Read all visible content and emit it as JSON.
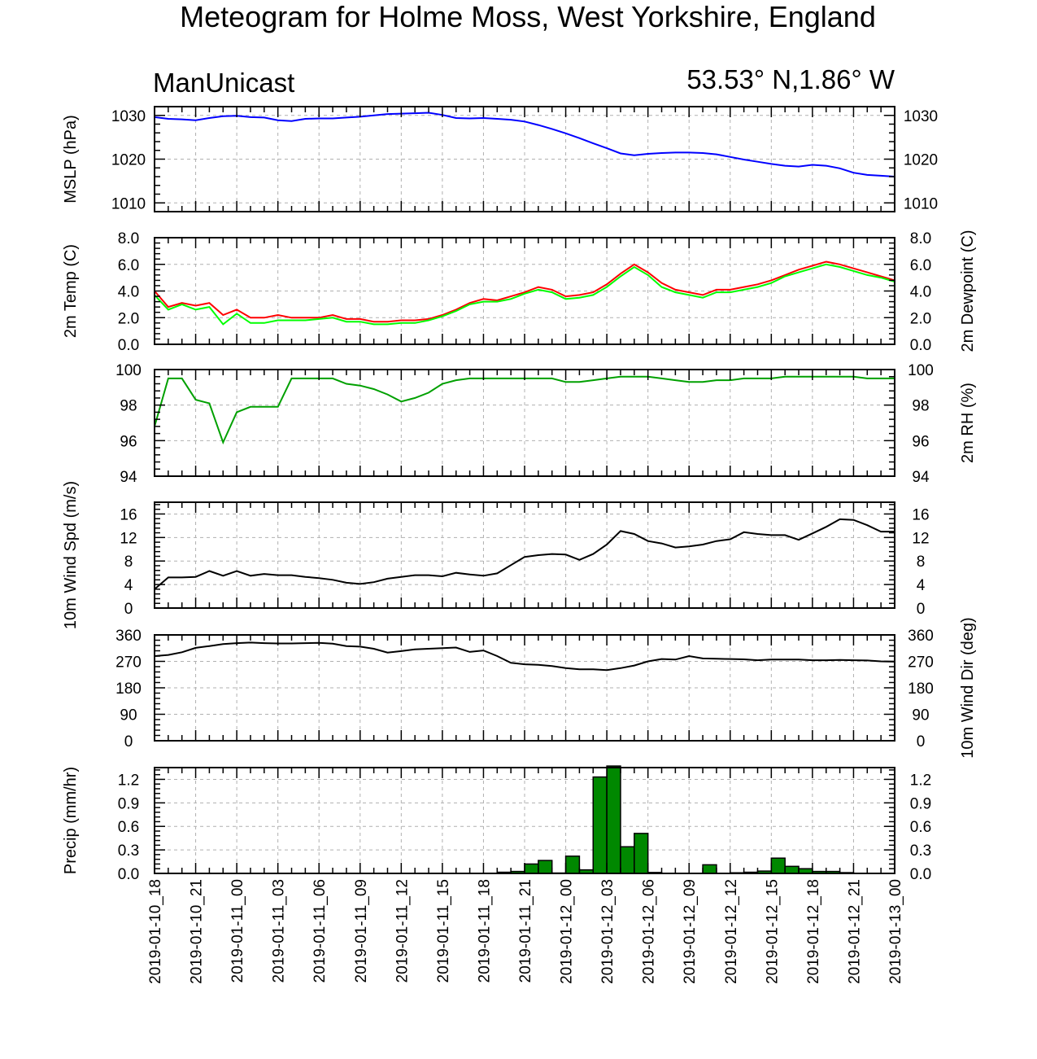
{
  "title": "Meteogram for Holme Moss, West Yorkshire, England",
  "model": "ManUnicast",
  "location": "53.53° N,1.86° W",
  "x_tick_labels": [
    "2019-01-10_18",
    "2019-01-10_21",
    "2019-01-11_00",
    "2019-01-11_03",
    "2019-01-11_06",
    "2019-01-11_09",
    "2019-01-11_12",
    "2019-01-11_15",
    "2019-01-11_18",
    "2019-01-11_21",
    "2019-01-12_00",
    "2019-01-12_03",
    "2019-01-12_06",
    "2019-01-12_09",
    "2019-01-12_12",
    "2019-01-12_15",
    "2019-01-12_18",
    "2019-01-12_21",
    "2019-01-13_00"
  ],
  "chart_data": [
    {
      "type": "line",
      "ylabel": "MSLP (hPa)",
      "ylabel_right": "",
      "ylim": [
        1008,
        1032
      ],
      "yticks": [
        1010,
        1020,
        1030
      ],
      "ytick_labels": [
        "1010",
        "1020",
        "1030"
      ],
      "grid": true,
      "series": [
        {
          "color": "#0000ff",
          "values": [
            1029.6,
            1029.2,
            1029.1,
            1028.9,
            1029.4,
            1029.8,
            1029.9,
            1029.6,
            1029.5,
            1028.9,
            1028.7,
            1029.2,
            1029.3,
            1029.3,
            1029.5,
            1029.7,
            1030.0,
            1030.3,
            1030.4,
            1030.5,
            1030.6,
            1030.1,
            1029.4,
            1029.3,
            1029.4,
            1029.2,
            1029.0,
            1028.6,
            1027.8,
            1026.9,
            1025.9,
            1024.8,
            1023.6,
            1022.5,
            1021.3,
            1020.9,
            1021.2,
            1021.4,
            1021.5,
            1021.5,
            1021.4,
            1021.1,
            1020.5,
            1019.9,
            1019.4,
            1018.9,
            1018.5,
            1018.3,
            1018.7,
            1018.5,
            1017.9,
            1016.9,
            1016.4,
            1016.2,
            1016.0
          ]
        }
      ]
    },
    {
      "type": "line",
      "ylabel": "2m Temp (C)",
      "ylabel_right": "2m Dewpoint (C)",
      "ylim": [
        0,
        8
      ],
      "yticks": [
        0,
        2,
        4,
        6,
        8
      ],
      "ytick_labels": [
        "0.0",
        "2.0",
        "4.0",
        "6.0",
        "8.0"
      ],
      "grid": true,
      "series": [
        {
          "color": "#ff0000",
          "values": [
            4.0,
            2.8,
            3.1,
            2.9,
            3.1,
            2.2,
            2.6,
            2.0,
            2.0,
            2.2,
            2.0,
            2.0,
            2.0,
            2.2,
            1.9,
            1.9,
            1.7,
            1.7,
            1.8,
            1.8,
            1.9,
            2.2,
            2.6,
            3.1,
            3.4,
            3.3,
            3.6,
            3.9,
            4.3,
            4.1,
            3.6,
            3.7,
            3.9,
            4.5,
            5.3,
            6.0,
            5.4,
            4.6,
            4.1,
            3.9,
            3.7,
            4.1,
            4.1,
            4.3,
            4.5,
            4.8,
            5.2,
            5.6,
            5.9,
            6.2,
            6.0,
            5.7,
            5.4,
            5.1,
            4.8
          ]
        },
        {
          "color": "#00ff00",
          "values": [
            3.7,
            2.6,
            3.0,
            2.6,
            2.8,
            1.5,
            2.3,
            1.6,
            1.6,
            1.8,
            1.8,
            1.8,
            1.9,
            2.0,
            1.7,
            1.7,
            1.5,
            1.5,
            1.6,
            1.6,
            1.8,
            2.1,
            2.5,
            3.0,
            3.2,
            3.2,
            3.4,
            3.8,
            4.1,
            3.9,
            3.4,
            3.5,
            3.7,
            4.3,
            5.1,
            5.8,
            5.2,
            4.3,
            3.9,
            3.7,
            3.5,
            3.9,
            3.9,
            4.1,
            4.3,
            4.6,
            5.1,
            5.4,
            5.7,
            6.0,
            5.8,
            5.5,
            5.2,
            5.0,
            4.7
          ]
        }
      ]
    },
    {
      "type": "line",
      "ylabel": "",
      "ylabel_right": "2m RH (%)",
      "ylim": [
        94,
        100
      ],
      "yticks": [
        94,
        96,
        98,
        100
      ],
      "ytick_labels": [
        "94",
        "96",
        "98",
        "100"
      ],
      "grid": true,
      "series": [
        {
          "color": "#00a000",
          "values": [
            96.8,
            99.5,
            99.5,
            98.3,
            98.1,
            95.9,
            97.6,
            97.9,
            97.9,
            97.9,
            99.5,
            99.5,
            99.5,
            99.5,
            99.2,
            99.1,
            98.9,
            98.6,
            98.2,
            98.4,
            98.7,
            99.2,
            99.4,
            99.5,
            99.5,
            99.5,
            99.5,
            99.5,
            99.5,
            99.5,
            99.3,
            99.3,
            99.4,
            99.5,
            99.6,
            99.6,
            99.6,
            99.5,
            99.4,
            99.3,
            99.3,
            99.4,
            99.4,
            99.5,
            99.5,
            99.5,
            99.6,
            99.6,
            99.6,
            99.6,
            99.6,
            99.6,
            99.5,
            99.5,
            99.5
          ]
        }
      ]
    },
    {
      "type": "line",
      "ylabel": "10m Wind Spd (m/s)",
      "ylabel_right": "",
      "ylim": [
        0,
        18
      ],
      "yticks": [
        0,
        4,
        8,
        12,
        16
      ],
      "ytick_labels": [
        "0",
        "4",
        "8",
        "12",
        "16"
      ],
      "grid": true,
      "series": [
        {
          "color": "#000000",
          "values": [
            3.2,
            5.2,
            5.2,
            5.3,
            6.3,
            5.5,
            6.3,
            5.5,
            5.8,
            5.6,
            5.6,
            5.3,
            5.1,
            4.8,
            4.3,
            4.1,
            4.4,
            5.0,
            5.3,
            5.6,
            5.6,
            5.4,
            6.0,
            5.7,
            5.5,
            5.9,
            7.3,
            8.7,
            9.0,
            9.2,
            9.1,
            8.2,
            9.2,
            10.8,
            13.1,
            12.6,
            11.4,
            11.0,
            10.3,
            10.5,
            10.8,
            11.4,
            11.7,
            12.9,
            12.6,
            12.4,
            12.4,
            11.6,
            12.7,
            13.8,
            15.1,
            15.0,
            14.1,
            13.0,
            13.0
          ]
        }
      ]
    },
    {
      "type": "line",
      "ylabel": "",
      "ylabel_right": "10m Wind Dir (deg)",
      "ylim": [
        0,
        360
      ],
      "yticks": [
        0,
        90,
        180,
        270,
        360
      ],
      "ytick_labels": [
        "0",
        "90",
        "180",
        "270",
        "360"
      ],
      "grid": true,
      "series": [
        {
          "color": "#000000",
          "values": [
            288,
            292,
            301,
            316,
            322,
            329,
            332,
            334,
            332,
            331,
            331,
            332,
            333,
            330,
            322,
            320,
            313,
            300,
            305,
            311,
            313,
            315,
            317,
            302,
            307,
            288,
            265,
            260,
            258,
            254,
            247,
            243,
            243,
            240,
            247,
            256,
            270,
            278,
            276,
            288,
            280,
            279,
            278,
            277,
            274,
            276,
            276,
            276,
            274,
            274,
            275,
            274,
            273,
            270,
            269
          ]
        }
      ]
    },
    {
      "type": "bar",
      "ylabel": "Precip (mm/hr)",
      "ylabel_right": "",
      "ylim": [
        0,
        1.35
      ],
      "yticks": [
        0,
        0.3,
        0.6,
        0.9,
        1.2
      ],
      "ytick_labels": [
        "0.0",
        "0.3",
        "0.6",
        "0.9",
        "1.2"
      ],
      "grid": true,
      "bar_color": "#008800",
      "series": [
        {
          "values": [
            0,
            0,
            0,
            0,
            0,
            0,
            0,
            0,
            0,
            0,
            0,
            0,
            0,
            0,
            0,
            0,
            0,
            0,
            0,
            0,
            0,
            0,
            0,
            0,
            0.003,
            0.015,
            0.025,
            0.12,
            0.165,
            0.005,
            0.22,
            0.045,
            1.23,
            1.37,
            0.34,
            0.51,
            0.012,
            0,
            0,
            0,
            0.11,
            0,
            0.008,
            0.015,
            0.03,
            0.195,
            0.09,
            0.06,
            0.025,
            0.025,
            0.01,
            0,
            0,
            0,
            0
          ]
        }
      ]
    }
  ]
}
